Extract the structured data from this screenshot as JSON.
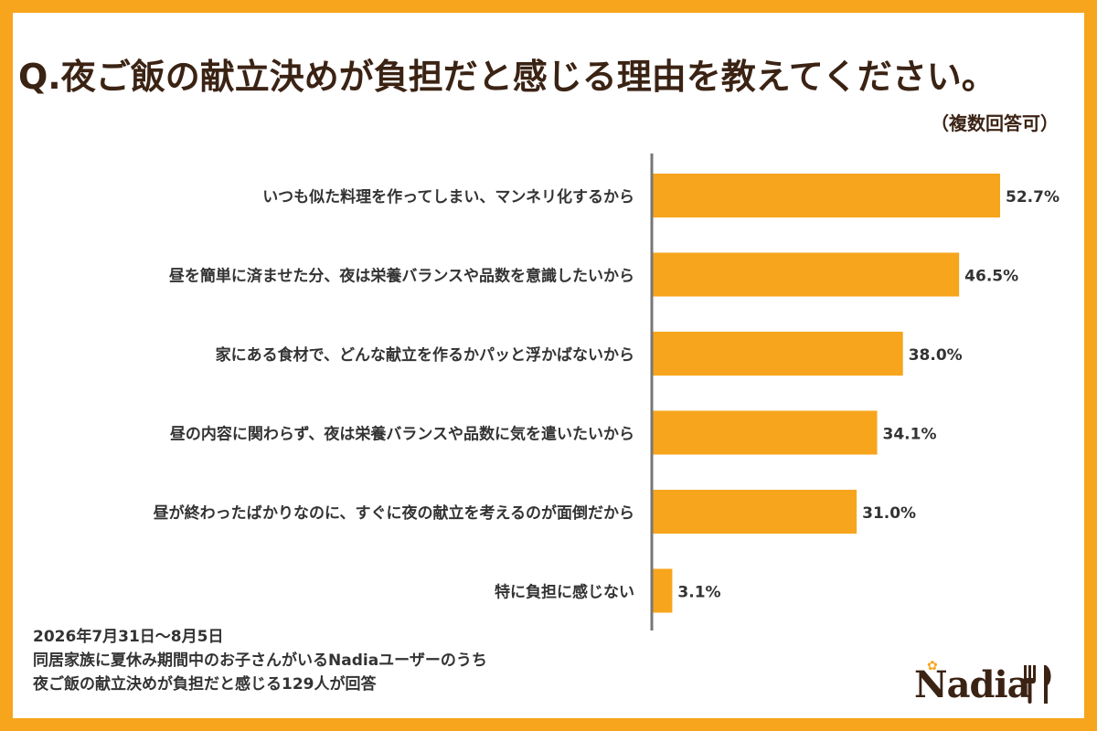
{
  "header": {
    "title": "Q.夜ご飯の献立決めが負担だと感じる理由を教えてください。",
    "subtitle": "（複数回答可）"
  },
  "chart_data": {
    "type": "bar",
    "orientation": "horizontal",
    "categories": [
      "いつも似た料理を作ってしまい、マンネリ化するから",
      "昼を簡単に済ませた分、夜は栄養バランスや品数を意識したいから",
      "家にある食材で、どんな献立を作るかパッと浮かばないから",
      "昼の内容に関わらず、夜は栄養バランスや品数に気を遣いたいから",
      "昼が終わったばかりなのに、すぐに夜の献立を考えるのが面倒だから",
      "特に負担に感じない"
    ],
    "values": [
      52.7,
      46.5,
      38.0,
      34.1,
      31.0,
      3.1
    ],
    "value_labels": [
      "52.7%",
      "46.5%",
      "38.0%",
      "34.1%",
      "31.0%",
      "3.1%"
    ],
    "unit": "%",
    "xlim": [
      0,
      60
    ],
    "grid": false,
    "bar_color": "#f7a51c",
    "axis_color": "#777777",
    "label_color": "#333333"
  },
  "footnote": {
    "lines": [
      "2026年7月31日～8月5日",
      "同居家族に夏休み期間中のお子さんがいるNadiaユーザーのうち",
      "夜ご飯の献立決めが負担だと感じる129人が回答"
    ]
  },
  "logo": {
    "text": "Nadia",
    "icon": "fork-knife-icon",
    "flower_icon": "flower-icon"
  },
  "colors": {
    "background": "#f7a51c",
    "panel": "#ffffff",
    "title": "#3b2314"
  }
}
